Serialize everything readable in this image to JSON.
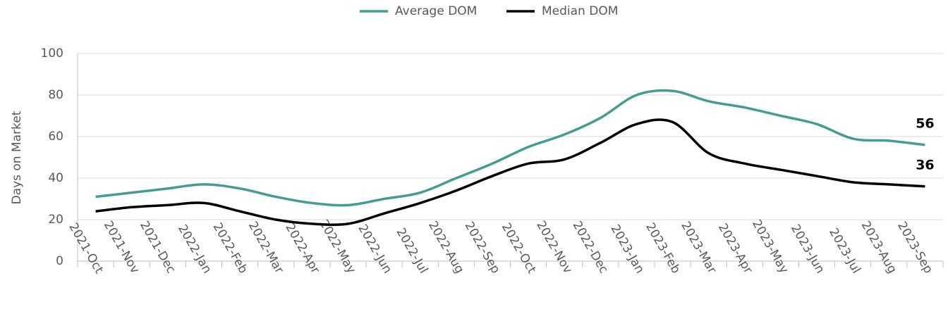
{
  "chart_data": {
    "type": "line",
    "ylabel": "Days on Market",
    "categories": [
      "2021-Oct",
      "2021-Nov",
      "2021-Dec",
      "2022-Jan",
      "2022-Feb",
      "2022-Mar",
      "2022-Apr",
      "2022-May",
      "2022-Jun",
      "2022-Jul",
      "2022-Aug",
      "2022-Sep",
      "2022-Oct",
      "2022-Nov",
      "2022-Dec",
      "2023-Jan",
      "2023-Feb",
      "2023-Mar",
      "2023-Apr",
      "2023-May",
      "2023-Jun",
      "2023-Jul",
      "2023-Aug",
      "2023-Sep"
    ],
    "series": [
      {
        "name": "Average DOM",
        "color": "#459c91",
        "values": [
          31,
          33,
          35,
          37,
          35,
          31,
          28,
          27,
          30,
          33,
          40,
          47,
          55,
          61,
          69,
          80,
          82,
          77,
          74,
          70,
          66,
          59,
          58,
          56
        ]
      },
      {
        "name": "Median DOM",
        "color": "#000000",
        "values": [
          24,
          26,
          27,
          28,
          24,
          20,
          18,
          18,
          23,
          28,
          34,
          41,
          47,
          49,
          57,
          66,
          67,
          52,
          47,
          44,
          41,
          38,
          37,
          36
        ]
      }
    ],
    "ylim": [
      0,
      100
    ],
    "yticks": [
      0,
      20,
      40,
      60,
      80,
      100
    ],
    "grid": true,
    "legend": "top"
  }
}
